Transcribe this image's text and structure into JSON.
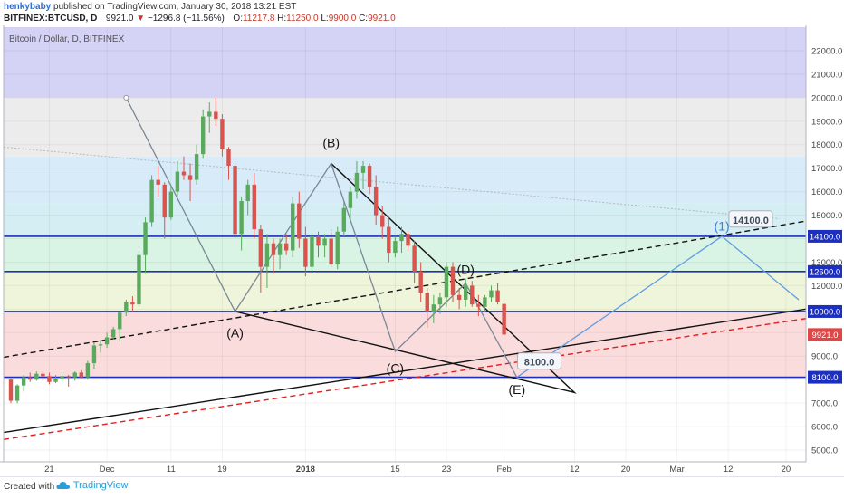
{
  "header": {
    "user": "henkybaby",
    "published": "published on TradingView.com, January 30, 2018 13:21 EST",
    "symbol": "BITFINEX:BTCUSD, D",
    "last": "9921.0",
    "change_arrow": "▼",
    "change": "−1296.8 (−11.56%)",
    "o_label": "O:",
    "o_value": "11217.8",
    "h_label": "H:",
    "h_value": "11250.0",
    "l_label": "L:",
    "l_value": "9900.0",
    "c_label": "C:",
    "c_value": "9921.0"
  },
  "footer": {
    "created_with": "Created with",
    "brand": "TradingView",
    "brand_icon": "tradingview-cloud-icon"
  },
  "chart_data": {
    "type": "candlestick",
    "title": "Bitcoin / Dollar, D, BITFINEX",
    "ylim": [
      4500,
      23000
    ],
    "y_ticks": [
      5000,
      6000,
      7000,
      8000,
      9000,
      10000,
      11000,
      12000,
      13000,
      14000,
      15000,
      16000,
      17000,
      18000,
      19000,
      20000,
      21000,
      22000
    ],
    "y_tick_labels": [
      "5000.0",
      "6000.0",
      "7000.0",
      "8000.0",
      "9000.0",
      "10000.0",
      "11000.0",
      "12000.0",
      "13000.0",
      "14000.0",
      "15000.0",
      "16000.0",
      "17000.0",
      "18000.0",
      "19000.0",
      "20000.0",
      "21000.0",
      "22000.0"
    ],
    "x_range_days": [
      0,
      123
    ],
    "x_ticks": [
      {
        "day": 6,
        "label": "21"
      },
      {
        "day": 15,
        "label": "Dec"
      },
      {
        "day": 25,
        "label": "11"
      },
      {
        "day": 33,
        "label": "19"
      },
      {
        "day": 46,
        "label": "2018"
      },
      {
        "day": 60,
        "label": "15"
      },
      {
        "day": 68,
        "label": "23"
      },
      {
        "day": 77,
        "label": "Feb"
      },
      {
        "day": 88,
        "label": "12"
      },
      {
        "day": 96,
        "label": "20"
      },
      {
        "day": 104,
        "label": "Mar"
      },
      {
        "day": 112,
        "label": "12"
      },
      {
        "day": 121,
        "label": "20"
      }
    ],
    "bands": [
      {
        "from": 20000,
        "to": 23000,
        "color": "#d4d2f5"
      },
      {
        "from": 17500,
        "to": 20000,
        "color": "#ececec"
      },
      {
        "from": 15500,
        "to": 17500,
        "color": "#d7ecf8"
      },
      {
        "from": 14100,
        "to": 15500,
        "color": "#d4eef3"
      },
      {
        "from": 12600,
        "to": 14100,
        "color": "#d9f3e4"
      },
      {
        "from": 10900,
        "to": 12600,
        "color": "#eef5da"
      },
      {
        "from": 8100,
        "to": 10900,
        "color": "#fadcdc"
      },
      {
        "from": 4500,
        "to": 8100,
        "color": "#ffffff"
      }
    ],
    "levels": [
      {
        "price": 14100,
        "label": "14100.0"
      },
      {
        "price": 12600,
        "label": "12600.0"
      },
      {
        "price": 10900,
        "label": "10900.0"
      },
      {
        "price": 8100,
        "label": "8100.0"
      }
    ],
    "current_price": {
      "price": 9921,
      "label": "9921.0",
      "color": "#e04646"
    },
    "candles": [
      [
        8000,
        8050,
        7000,
        7100
      ],
      [
        7100,
        7800,
        7000,
        7750
      ],
      [
        7750,
        8200,
        7500,
        8100
      ],
      [
        8100,
        8300,
        7900,
        8000
      ],
      [
        8000,
        8350,
        7950,
        8250
      ],
      [
        8250,
        8350,
        7950,
        8150
      ],
      [
        8150,
        8300,
        7800,
        7900
      ],
      [
        7900,
        8200,
        7850,
        8050
      ],
      [
        8050,
        8250,
        7900,
        8150
      ],
      [
        8150,
        8200,
        7700,
        8100
      ],
      [
        8100,
        8350,
        7950,
        8300
      ],
      [
        8300,
        8400,
        8050,
        8100
      ],
      [
        8100,
        8800,
        8000,
        8700
      ],
      [
        8700,
        9600,
        8450,
        9450
      ],
      [
        9450,
        9700,
        9150,
        9500
      ],
      [
        9500,
        10000,
        9350,
        9800
      ],
      [
        9800,
        10250,
        9700,
        10150
      ],
      [
        10150,
        10900,
        9600,
        10850
      ],
      [
        10850,
        11400,
        10700,
        11300
      ],
      [
        11300,
        11550,
        10900,
        11200
      ],
      [
        11200,
        13500,
        11100,
        13300
      ],
      [
        13300,
        14900,
        12500,
        14700
      ],
      [
        14700,
        16700,
        14500,
        16500
      ],
      [
        16500,
        17100,
        15800,
        16300
      ],
      [
        16300,
        16400,
        14000,
        14900
      ],
      [
        14900,
        16200,
        14800,
        16000
      ],
      [
        16000,
        17300,
        15800,
        16850
      ],
      [
        16850,
        17500,
        16500,
        16700
      ],
      [
        16700,
        17200,
        15600,
        16500
      ],
      [
        16500,
        18000,
        16300,
        17600
      ],
      [
        17600,
        19500,
        17400,
        19200
      ],
      [
        19200,
        19800,
        18500,
        19400
      ],
      [
        19400,
        20000,
        18800,
        19100
      ],
      [
        19100,
        19300,
        17500,
        17800
      ],
      [
        17800,
        17900,
        16500,
        17100
      ],
      [
        17100,
        17300,
        14000,
        14200
      ],
      [
        14200,
        15800,
        13500,
        15600
      ],
      [
        15600,
        16500,
        15000,
        16300
      ],
      [
        16300,
        16800,
        14000,
        14400
      ],
      [
        14400,
        14600,
        11700,
        12800
      ],
      [
        12800,
        14200,
        11900,
        13800
      ],
      [
        13800,
        14000,
        12500,
        13300
      ],
      [
        13300,
        14000,
        12700,
        13800
      ],
      [
        13800,
        14200,
        13300,
        13500
      ],
      [
        13500,
        15800,
        13200,
        15500
      ],
      [
        15500,
        16000,
        13600,
        14000
      ],
      [
        14000,
        14500,
        12400,
        12800
      ],
      [
        12800,
        14200,
        12600,
        14100
      ],
      [
        14100,
        14300,
        13200,
        13700
      ],
      [
        13700,
        14200,
        13200,
        14000
      ],
      [
        14000,
        14400,
        12800,
        12900
      ],
      [
        12900,
        14500,
        12700,
        14300
      ],
      [
        14300,
        15600,
        14100,
        15300
      ],
      [
        15300,
        16200,
        14800,
        16000
      ],
      [
        16000,
        17300,
        15700,
        16800
      ],
      [
        16800,
        17300,
        16100,
        17100
      ],
      [
        17100,
        17200,
        15900,
        16200
      ],
      [
        16200,
        16700,
        14600,
        15000
      ],
      [
        15000,
        15400,
        14000,
        14500
      ],
      [
        14500,
        14900,
        13000,
        13400
      ],
      [
        13400,
        14100,
        13200,
        13900
      ],
      [
        13900,
        14500,
        13400,
        14200
      ],
      [
        14200,
        14300,
        13500,
        13700
      ],
      [
        13700,
        13900,
        12100,
        12600
      ],
      [
        12600,
        13000,
        11300,
        11700
      ],
      [
        11700,
        11900,
        10200,
        10900
      ],
      [
        10900,
        11600,
        10400,
        11200
      ],
      [
        11200,
        11700,
        10800,
        11500
      ],
      [
        11500,
        13000,
        11100,
        12800
      ],
      [
        12800,
        13000,
        11300,
        11600
      ],
      [
        11600,
        11900,
        11000,
        11400
      ],
      [
        11400,
        12300,
        11100,
        12000
      ],
      [
        12000,
        12200,
        11100,
        11200
      ],
      [
        11200,
        11600,
        10700,
        11100
      ],
      [
        11100,
        11600,
        10900,
        11500
      ],
      [
        11500,
        12000,
        11300,
        11800
      ],
      [
        11800,
        12100,
        11200,
        11300
      ],
      [
        11217.8,
        11250,
        9900,
        9921
      ]
    ],
    "pattern_labels": [
      {
        "text": "(A)",
        "day": 35,
        "price": 9800
      },
      {
        "text": "(B)",
        "day": 50,
        "price": 17900
      },
      {
        "text": "(C)",
        "day": 60,
        "price": 8300
      },
      {
        "text": "(D)",
        "day": 71,
        "price": 12500
      },
      {
        "text": "(E)",
        "day": 79,
        "price": 7400
      },
      {
        "text": "(1)",
        "day": 111,
        "price": 14350
      }
    ],
    "target_labels": [
      {
        "text": "14100.0",
        "day": 115.5,
        "price": 14800
      },
      {
        "text": "8100.0",
        "day": 82.5,
        "price": 8750
      }
    ]
  }
}
